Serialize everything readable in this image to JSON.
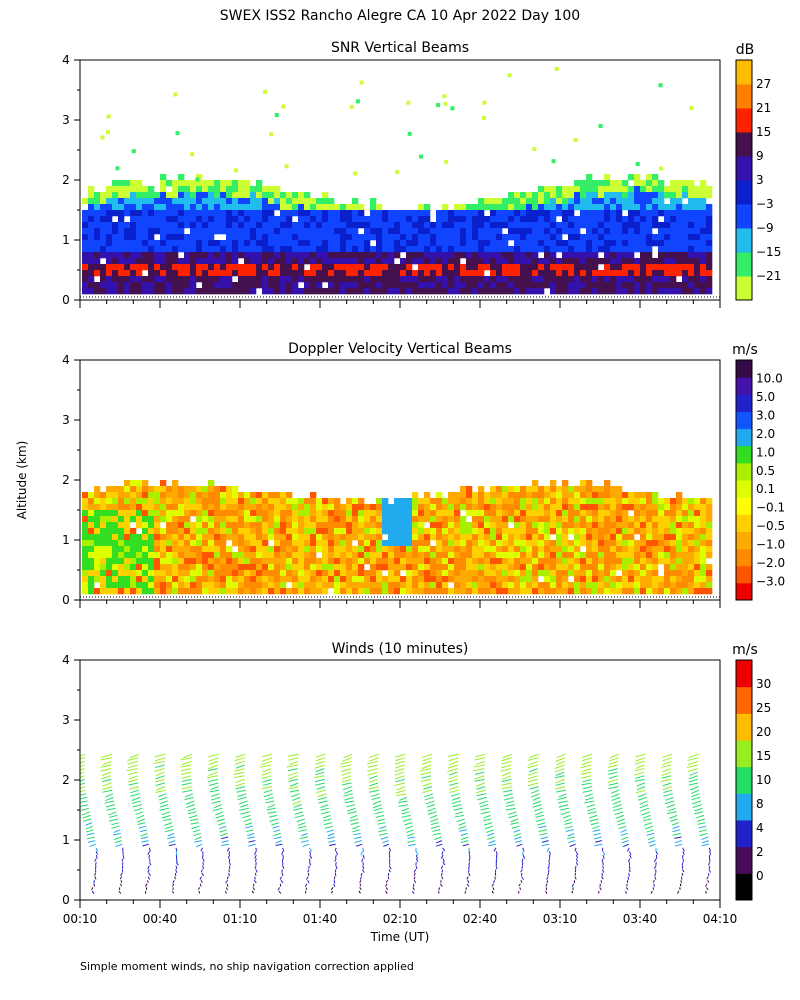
{
  "title": "SWEX ISS2 Rancho Alegre CA  10 Apr 2022 Day 100",
  "footer": "Simple moment winds, no ship navigation correction applied",
  "ylabel": "Altitude (km)",
  "xlabel": "Time (UT)",
  "x_ticks": [
    "00:10",
    "00:40",
    "01:10",
    "01:40",
    "02:10",
    "02:40",
    "03:10",
    "03:40",
    "04:10"
  ],
  "y_ticks": [
    "0",
    "1",
    "2",
    "3",
    "4"
  ],
  "colors": {
    "snr": [
      "#ccff33",
      "#33ee66",
      "#22bbee",
      "#1144ff",
      "#0a20cc",
      "#3311aa",
      "#44104d",
      "#ff2200",
      "#ff7f00",
      "#ffbb00"
    ],
    "doppler": [
      "#ee0000",
      "#ff5500",
      "#ff8c00",
      "#ffaa00",
      "#ffd000",
      "#ffff00",
      "#ddff00",
      "#aaee00",
      "#33dd22",
      "#22aaee",
      "#1155ff",
      "#2222cc",
      "#4411aa",
      "#330a44"
    ],
    "winds": [
      "#000000",
      "#4a0a5a",
      "#2222cc",
      "#22aaee",
      "#22dd66",
      "#99ee22",
      "#ffbb00",
      "#ff6600",
      "#ee0000"
    ]
  },
  "chart_data": [
    {
      "type": "heatmap",
      "title": "SNR Vertical Beams",
      "units": "dB",
      "xlabel": "",
      "ylabel": "Altitude (km)",
      "xlim": [
        "00:10",
        "04:10"
      ],
      "ylim": [
        0,
        4
      ],
      "colorbar_ticks": [
        "27",
        "21",
        "15",
        "9",
        "3",
        "−3",
        "−9",
        "−15",
        "−21"
      ],
      "layers_km": [
        {
          "from": 0.1,
          "to": 0.45,
          "snr_db": 9
        },
        {
          "from": 0.45,
          "to": 0.6,
          "snr_db": 15
        },
        {
          "from": 0.6,
          "to": 0.85,
          "snr_db": 9
        },
        {
          "from": 0.85,
          "to": 1.5,
          "snr_db": -3
        },
        {
          "from": 1.5,
          "to": 1.8,
          "snr_db": -9
        },
        {
          "from": 1.8,
          "to": 2.0,
          "snr_db": -15
        }
      ]
    },
    {
      "type": "heatmap",
      "title": "Doppler Velocity Vertical Beams",
      "units": "m/s",
      "xlabel": "",
      "ylabel": "Altitude (km)",
      "xlim": [
        "00:10",
        "04:10"
      ],
      "ylim": [
        0,
        4
      ],
      "colorbar_ticks": [
        "10.0",
        "5.0",
        "3.0",
        "2.0",
        "1.0",
        "0.5",
        "0.1",
        "−0.1",
        "−0.5",
        "−1.0",
        "−2.0",
        "−3.0"
      ],
      "typical_velocity_ms": -0.7,
      "top_km": 1.9
    },
    {
      "type": "wind_barbs",
      "title": "Winds (10 minutes)",
      "units": "m/s",
      "xlabel": "Time (UT)",
      "ylabel": "Altitude (km)",
      "xlim": [
        "00:10",
        "04:10"
      ],
      "ylim": [
        0,
        4
      ],
      "colorbar_ticks": [
        "30",
        "25",
        "20",
        "15",
        "10",
        "8",
        "4",
        "2",
        "0"
      ],
      "profile_times": [
        "00:15",
        "00:25",
        "00:35",
        "00:45",
        "00:55",
        "01:05",
        "01:15",
        "01:25",
        "01:35",
        "01:45",
        "01:55",
        "02:05",
        "02:15",
        "02:25",
        "02:35",
        "02:45",
        "02:55",
        "03:05",
        "03:15",
        "03:25",
        "03:35",
        "03:45",
        "03:55",
        "04:05"
      ],
      "speed_by_height": [
        {
          "km": 0.2,
          "ms": 3
        },
        {
          "km": 0.6,
          "ms": 5
        },
        {
          "km": 1.0,
          "ms": 9
        },
        {
          "km": 1.5,
          "ms": 13
        },
        {
          "km": 2.0,
          "ms": 15
        },
        {
          "km": 2.4,
          "ms": 17
        }
      ]
    }
  ]
}
